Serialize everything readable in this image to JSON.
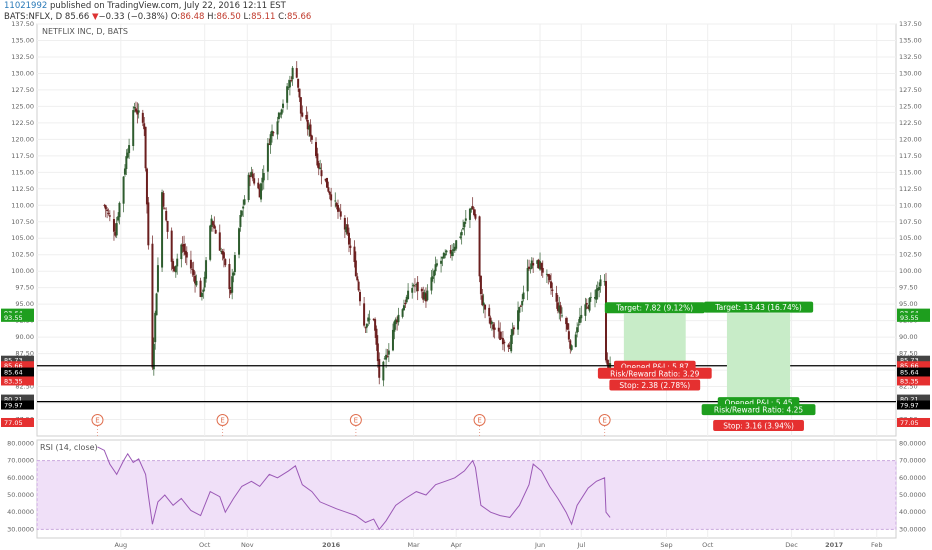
{
  "header": {
    "line1_user": "11021992",
    "line1_text": " published on TradingView.com, July 22, 2016 12:11 EST",
    "symbol": "BATS:NFLX, D",
    "price": "85.66",
    "arrow": "▼",
    "change": "−0.33 (−0.38%)",
    "o_label": "O:",
    "o_val": "86.48",
    "h_label": "H:",
    "h_val": "86.50",
    "l_label": "L:",
    "l_val": "85.11",
    "c_label": "C:",
    "c_val": "85.66"
  },
  "main_label": "NETFLIX INC, D, BATS",
  "rsi_label": "RSI (14, close)",
  "colors": {
    "up_candle": "#2e5c2e",
    "down_candle": "#6b1f1f",
    "rsi_line": "#9b59b6",
    "rsi_band": "#f0e0f8",
    "target_box": "#c8ecc8",
    "green_label": "#1e9e1e",
    "red_label": "#e53030"
  },
  "chart_data": [
    {
      "type": "candlestick",
      "title": "NETFLIX INC, D, BATS",
      "ylim": [
        75,
        137.5
      ],
      "y_ticks": [
        "77.50",
        "80.00",
        "82.50",
        "85.00",
        "87.50",
        "90.00",
        "92.50",
        "95.00",
        "97.50",
        "100.00",
        "102.50",
        "105.00",
        "107.50",
        "110.00",
        "112.50",
        "115.00",
        "117.50",
        "120.00",
        "122.50",
        "125.00",
        "127.50",
        "130.00",
        "132.50",
        "135.00",
        "137.50"
      ],
      "x_ticks": [
        "Aug",
        "Oct",
        "Nov",
        "2016",
        "Mar",
        "Apr",
        "Jun",
        "Jul",
        "Sep",
        "Oct",
        "Dec",
        "2017",
        "Feb"
      ],
      "close_path": [
        [
          "2015-07-20",
          110
        ],
        [
          "2015-07-28",
          106
        ],
        [
          "2015-08-04",
          116
        ],
        [
          "2015-08-11",
          125
        ],
        [
          "2015-08-18",
          122
        ],
        [
          "2015-08-24",
          86
        ],
        [
          "2015-08-31",
          112
        ],
        [
          "2015-09-08",
          100
        ],
        [
          "2015-09-14",
          104
        ],
        [
          "2015-09-22",
          100
        ],
        [
          "2015-09-29",
          96
        ],
        [
          "2015-10-06",
          108
        ],
        [
          "2015-10-13",
          103
        ],
        [
          "2015-10-20",
          97
        ],
        [
          "2015-10-27",
          108
        ],
        [
          "2015-11-03",
          115
        ],
        [
          "2015-11-10",
          112
        ],
        [
          "2015-11-17",
          120
        ],
        [
          "2015-11-24",
          124
        ],
        [
          "2015-12-01",
          128
        ],
        [
          "2015-12-06",
          132
        ],
        [
          "2015-12-10",
          124
        ],
        [
          "2015-12-17",
          121
        ],
        [
          "2015-12-23",
          116
        ],
        [
          "2016-01-04",
          110
        ],
        [
          "2016-01-12",
          106
        ],
        [
          "2016-01-19",
          100
        ],
        [
          "2016-01-25",
          92
        ],
        [
          "2016-02-01",
          93
        ],
        [
          "2016-02-05",
          84
        ],
        [
          "2016-02-09",
          86
        ],
        [
          "2016-02-16",
          92
        ],
        [
          "2016-02-23",
          95
        ],
        [
          "2016-03-01",
          98
        ],
        [
          "2016-03-10",
          96
        ],
        [
          "2016-03-18",
          101
        ],
        [
          "2016-03-28",
          103
        ],
        [
          "2016-04-05",
          106
        ],
        [
          "2016-04-12",
          110
        ],
        [
          "2016-04-15",
          108
        ],
        [
          "2016-04-19",
          96
        ],
        [
          "2016-04-26",
          92
        ],
        [
          "2016-05-03",
          90
        ],
        [
          "2016-05-10",
          89
        ],
        [
          "2016-05-17",
          94
        ],
        [
          "2016-05-20",
          97
        ],
        [
          "2016-05-24",
          101
        ],
        [
          "2016-06-01",
          101
        ],
        [
          "2016-06-08",
          98
        ],
        [
          "2016-06-13",
          95
        ],
        [
          "2016-06-20",
          92
        ],
        [
          "2016-06-24",
          88
        ],
        [
          "2016-06-28",
          92
        ],
        [
          "2016-07-06",
          95
        ],
        [
          "2016-07-12",
          97
        ],
        [
          "2016-07-15",
          98
        ],
        [
          "2016-07-18",
          98
        ],
        [
          "2016-07-19",
          86
        ],
        [
          "2016-07-22",
          85.66
        ]
      ],
      "price_levels": [
        {
          "label": "85.66",
          "value": 85.66,
          "line": true
        },
        {
          "label": "80.21",
          "value": 80.21,
          "line": true
        }
      ],
      "earnings_markers": [
        "2015-07-15",
        "2015-10-14",
        "2016-01-19",
        "2016-04-18",
        "2016-07-18"
      ],
      "earnings_letter": "E",
      "left_axis_tags": [
        {
          "label": "93.64",
          "value": 93.64,
          "color": "#1e9e1e"
        },
        {
          "label": "93.55",
          "value": 93.0,
          "color": "#1e9e1e"
        },
        {
          "label": "85.73",
          "value": 86.5,
          "color": "#444444"
        },
        {
          "label": "85.66",
          "value": 85.66,
          "color": "#e53030"
        },
        {
          "label": "85.64",
          "value": 84.7,
          "color": "#000000"
        },
        {
          "label": "83.35",
          "value": 83.35,
          "color": "#e53030"
        },
        {
          "label": "80.21",
          "value": 80.6,
          "color": "#444444"
        },
        {
          "label": "79.97",
          "value": 79.7,
          "color": "#000000"
        },
        {
          "label": "77.05",
          "value": 77.05,
          "color": "#e53030"
        }
      ],
      "positions": [
        {
          "target_label": "Target: 7.82 (9.12%)",
          "target_price": 93.55,
          "opened_pl": "Opened P&L: 5.87",
          "risk_reward": "Risk/Reward Ratio: 3.29",
          "stop_label": "Stop: 2.38 (2.78%)",
          "entry_price": 85.73,
          "stop_price": 83.35,
          "start": "2016-08-01",
          "end": "2016-09-15"
        },
        {
          "target_label": "Target: 13.43 (16.74%)",
          "target_price": 93.64,
          "opened_pl": "Opened P&L: 5.45",
          "risk_reward": "Risk/Reward Ratio: 4.25",
          "stop_label": "Stop: 3.16 (3.94%)",
          "entry_price": 80.21,
          "stop_price": 77.05,
          "start": "2016-10-15",
          "end": "2016-11-30"
        }
      ]
    },
    {
      "type": "line",
      "title": "RSI (14, close)",
      "ylim": [
        25,
        82
      ],
      "y_ticks": [
        "30.0000",
        "40.0000",
        "50.0000",
        "60.0000",
        "70.0000",
        "80.0000"
      ],
      "band": [
        30,
        70
      ],
      "series": [
        {
          "values": [
            [
              "2015-07-15",
              78
            ],
            [
              "2015-07-20",
              76
            ],
            [
              "2015-07-24",
              68
            ],
            [
              "2015-07-29",
              62
            ],
            [
              "2015-08-03",
              70
            ],
            [
              "2015-08-06",
              74
            ],
            [
              "2015-08-10",
              69
            ],
            [
              "2015-08-14",
              71
            ],
            [
              "2015-08-19",
              62
            ],
            [
              "2015-08-21",
              50
            ],
            [
              "2015-08-24",
              33
            ],
            [
              "2015-08-28",
              46
            ],
            [
              "2015-09-02",
              50
            ],
            [
              "2015-09-08",
              44
            ],
            [
              "2015-09-14",
              48
            ],
            [
              "2015-09-21",
              41
            ],
            [
              "2015-09-28",
              38
            ],
            [
              "2015-10-05",
              52
            ],
            [
              "2015-10-12",
              49
            ],
            [
              "2015-10-16",
              40
            ],
            [
              "2015-10-22",
              48
            ],
            [
              "2015-10-28",
              55
            ],
            [
              "2015-11-04",
              58
            ],
            [
              "2015-11-10",
              55
            ],
            [
              "2015-11-17",
              62
            ],
            [
              "2015-11-23",
              60
            ],
            [
              "2015-12-01",
              64
            ],
            [
              "2015-12-06",
              67
            ],
            [
              "2015-12-11",
              56
            ],
            [
              "2015-12-18",
              52
            ],
            [
              "2015-12-24",
              46
            ],
            [
              "2016-01-05",
              42
            ],
            [
              "2016-01-12",
              40
            ],
            [
              "2016-01-19",
              38
            ],
            [
              "2016-01-26",
              34
            ],
            [
              "2016-02-01",
              36
            ],
            [
              "2016-02-05",
              30
            ],
            [
              "2016-02-10",
              35
            ],
            [
              "2016-02-17",
              44
            ],
            [
              "2016-02-24",
              48
            ],
            [
              "2016-03-03",
              52
            ],
            [
              "2016-03-10",
              50
            ],
            [
              "2016-03-17",
              56
            ],
            [
              "2016-03-24",
              58
            ],
            [
              "2016-03-31",
              60
            ],
            [
              "2016-04-07",
              64
            ],
            [
              "2016-04-13",
              70
            ],
            [
              "2016-04-15",
              66
            ],
            [
              "2016-04-19",
              44
            ],
            [
              "2016-04-26",
              40
            ],
            [
              "2016-05-03",
              38
            ],
            [
              "2016-05-10",
              37
            ],
            [
              "2016-05-17",
              44
            ],
            [
              "2016-05-24",
              56
            ],
            [
              "2016-05-27",
              68
            ],
            [
              "2016-06-02",
              64
            ],
            [
              "2016-06-08",
              55
            ],
            [
              "2016-06-14",
              48
            ],
            [
              "2016-06-20",
              40
            ],
            [
              "2016-06-24",
              33
            ],
            [
              "2016-06-28",
              44
            ],
            [
              "2016-07-06",
              54
            ],
            [
              "2016-07-12",
              58
            ],
            [
              "2016-07-18",
              60
            ],
            [
              "2016-07-19",
              40
            ],
            [
              "2016-07-22",
              37
            ]
          ]
        }
      ]
    }
  ]
}
